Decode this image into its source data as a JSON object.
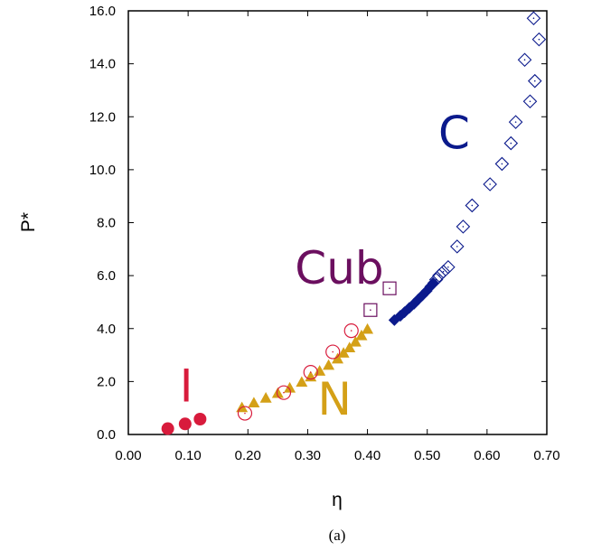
{
  "chart_data": {
    "type": "scatter",
    "xlabel": "η",
    "ylabel": "P*",
    "xlim": [
      0.0,
      0.7
    ],
    "ylim": [
      0.0,
      16.0
    ],
    "x_ticks": [
      "0.00",
      "0.10",
      "0.20",
      "0.30",
      "0.40",
      "0.50",
      "0.60",
      "0.70"
    ],
    "y_ticks": [
      "0.0",
      "2.0",
      "4.0",
      "6.0",
      "8.0",
      "10.0",
      "12.0",
      "14.0",
      "16.0"
    ],
    "grid": false,
    "caption": "(a)",
    "annotations": [
      {
        "text": "I",
        "x": 0.097,
        "y": 1.25,
        "color": "#d81b3c"
      },
      {
        "text": "N",
        "x": 0.345,
        "y": 0.75,
        "color": "#d4a017"
      },
      {
        "text": "Cub",
        "x": 0.353,
        "y": 5.7,
        "color": "#6b0f5f"
      },
      {
        "text": "C",
        "x": 0.545,
        "y": 10.8,
        "color": "#0b1a8c"
      }
    ],
    "series": [
      {
        "marker": "filled-circle",
        "color": "#d81b3c",
        "points": [
          [
            0.066,
            0.22
          ],
          [
            0.095,
            0.4
          ],
          [
            0.12,
            0.58
          ]
        ]
      },
      {
        "marker": "filled-triangle",
        "color": "#d4a017",
        "points": [
          [
            0.19,
            1.02
          ],
          [
            0.21,
            1.2
          ],
          [
            0.23,
            1.38
          ],
          [
            0.25,
            1.56
          ],
          [
            0.27,
            1.76
          ],
          [
            0.29,
            1.98
          ],
          [
            0.305,
            2.18
          ],
          [
            0.32,
            2.4
          ],
          [
            0.335,
            2.62
          ],
          [
            0.35,
            2.86
          ],
          [
            0.36,
            3.08
          ],
          [
            0.37,
            3.28
          ],
          [
            0.38,
            3.5
          ],
          [
            0.39,
            3.74
          ],
          [
            0.4,
            3.98
          ]
        ]
      },
      {
        "marker": "open-circle",
        "color": "#d81b3c",
        "points": [
          [
            0.195,
            0.8
          ],
          [
            0.26,
            1.58
          ],
          [
            0.305,
            2.35
          ],
          [
            0.342,
            3.12
          ],
          [
            0.373,
            3.92
          ]
        ]
      },
      {
        "marker": "open-square",
        "color": "#6b0f5f",
        "points": [
          [
            0.405,
            4.7
          ],
          [
            0.437,
            5.52
          ]
        ]
      },
      {
        "marker": "filled-diamond",
        "color": "#0b1a8c",
        "points": [
          [
            0.445,
            4.32
          ],
          [
            0.455,
            4.48
          ],
          [
            0.462,
            4.62
          ],
          [
            0.47,
            4.78
          ],
          [
            0.478,
            4.94
          ],
          [
            0.485,
            5.1
          ],
          [
            0.492,
            5.26
          ],
          [
            0.499,
            5.42
          ],
          [
            0.505,
            5.58
          ],
          [
            0.51,
            5.72
          ]
        ]
      },
      {
        "marker": "open-diamond",
        "color": "#0b1a8c",
        "points": [
          [
            0.515,
            5.85
          ],
          [
            0.52,
            6.0
          ],
          [
            0.527,
            6.15
          ],
          [
            0.535,
            6.32
          ],
          [
            0.55,
            7.1
          ],
          [
            0.56,
            7.85
          ],
          [
            0.575,
            8.65
          ],
          [
            0.605,
            9.45
          ],
          [
            0.625,
            10.22
          ],
          [
            0.64,
            11.0
          ],
          [
            0.648,
            11.8
          ],
          [
            0.672,
            12.58
          ],
          [
            0.68,
            13.35
          ],
          [
            0.663,
            14.15
          ],
          [
            0.687,
            14.92
          ],
          [
            0.678,
            15.72
          ]
        ]
      }
    ]
  }
}
